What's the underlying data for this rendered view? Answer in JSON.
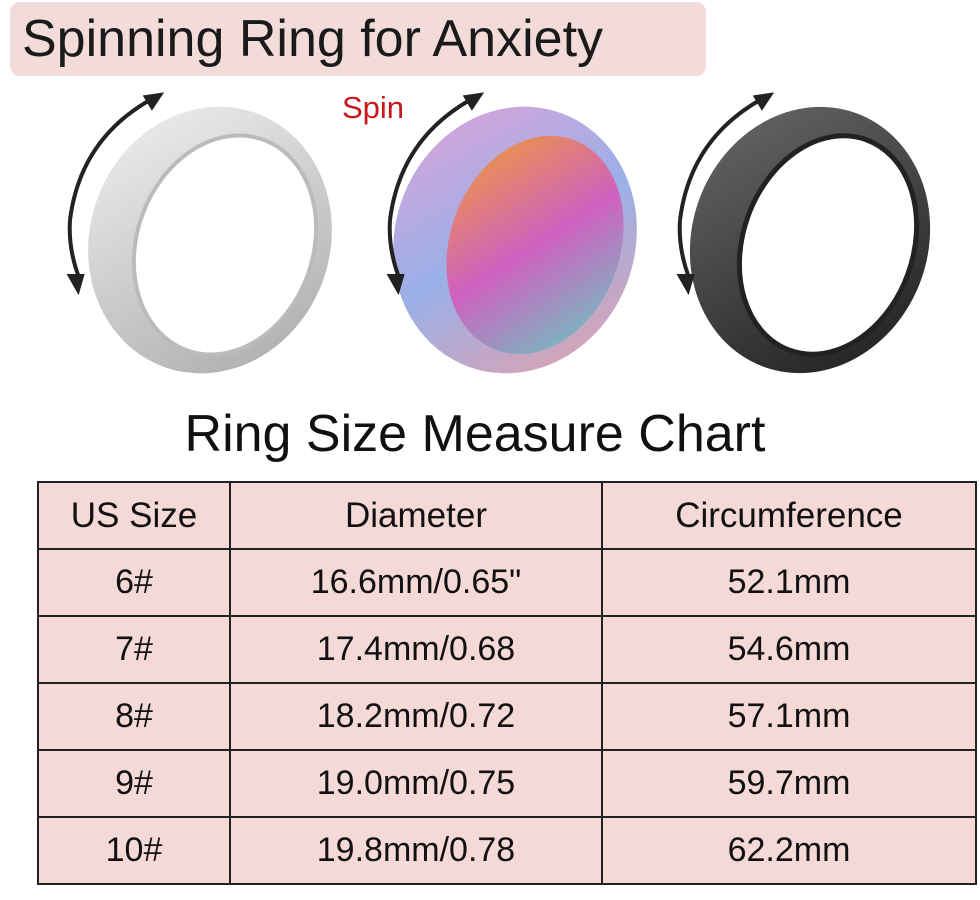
{
  "title": "Spinning Ring for Anxiety",
  "spin_label": "Spin",
  "chart_title": "Ring Size Measure Chart",
  "colors": {
    "title_bg": "#f2dbd8",
    "table_bg": "#f4d9d6",
    "spin_text": "#c8161d"
  },
  "rings": [
    {
      "name": "silver",
      "color": "#d9d9d9"
    },
    {
      "name": "rainbow",
      "color": "#c59bd6"
    },
    {
      "name": "black",
      "color": "#3a3a3a"
    }
  ],
  "table": {
    "headers": [
      "US Size",
      "Diameter",
      "Circumference"
    ],
    "rows": [
      [
        "6#",
        "16.6mm/0.65\"",
        "52.1mm"
      ],
      [
        "7#",
        "17.4mm/0.68",
        "54.6mm"
      ],
      [
        "8#",
        "18.2mm/0.72",
        "57.1mm"
      ],
      [
        "9#",
        "19.0mm/0.75",
        "59.7mm"
      ],
      [
        "10#",
        "19.8mm/0.78",
        "62.2mm"
      ]
    ]
  }
}
